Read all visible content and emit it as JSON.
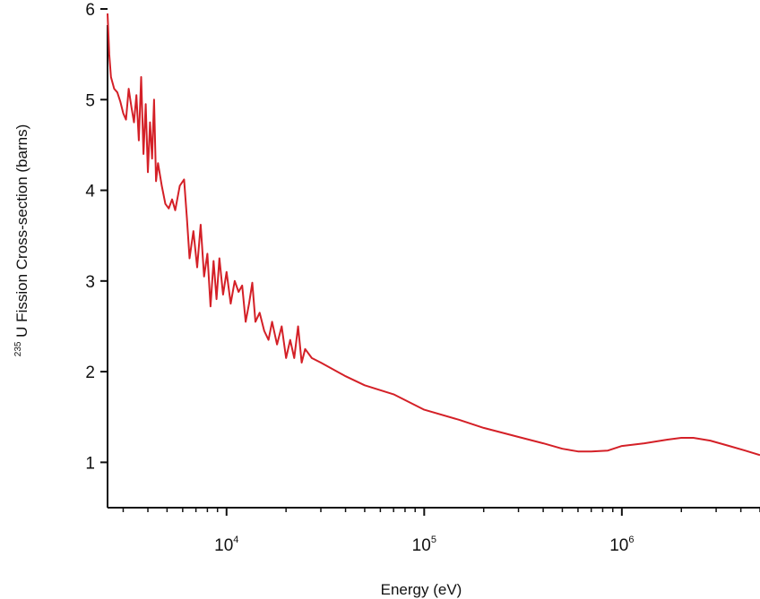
{
  "chart_data": {
    "type": "line",
    "title": "",
    "xlabel": "Energy (eV)",
    "ylabel_prefix": "235",
    "ylabel": "U Fission Cross-section (barns)",
    "x_scale": "log",
    "xlim": [
      2500,
      5000000
    ],
    "ylim": [
      0.5,
      6
    ],
    "x_ticks": [
      {
        "value": 10000,
        "base": "10",
        "exp": "4"
      },
      {
        "value": 100000,
        "base": "10",
        "exp": "5"
      },
      {
        "value": 1000000,
        "base": "10",
        "exp": "6"
      }
    ],
    "y_ticks": [
      1,
      2,
      3,
      4,
      5,
      6
    ],
    "grid": false,
    "legend": "none",
    "series": [
      {
        "color": "#d42027",
        "points": [
          [
            2500,
            5.95
          ],
          [
            2550,
            5.5
          ],
          [
            2600,
            5.25
          ],
          [
            2700,
            5.12
          ],
          [
            2800,
            5.08
          ],
          [
            2900,
            4.98
          ],
          [
            3000,
            4.85
          ],
          [
            3100,
            4.78
          ],
          [
            3200,
            5.12
          ],
          [
            3300,
            4.92
          ],
          [
            3400,
            4.75
          ],
          [
            3500,
            5.05
          ],
          [
            3600,
            4.55
          ],
          [
            3700,
            5.25
          ],
          [
            3800,
            4.4
          ],
          [
            3900,
            4.95
          ],
          [
            4000,
            4.2
          ],
          [
            4100,
            4.75
          ],
          [
            4200,
            4.35
          ],
          [
            4300,
            5.0
          ],
          [
            4400,
            4.1
          ],
          [
            4500,
            4.3
          ],
          [
            4700,
            4.05
          ],
          [
            4900,
            3.85
          ],
          [
            5100,
            3.8
          ],
          [
            5300,
            3.9
          ],
          [
            5500,
            3.78
          ],
          [
            5800,
            4.05
          ],
          [
            6100,
            4.12
          ],
          [
            6300,
            3.7
          ],
          [
            6500,
            3.25
          ],
          [
            6800,
            3.55
          ],
          [
            7100,
            3.15
          ],
          [
            7400,
            3.62
          ],
          [
            7700,
            3.05
          ],
          [
            8000,
            3.3
          ],
          [
            8300,
            2.72
          ],
          [
            8600,
            3.22
          ],
          [
            8900,
            2.8
          ],
          [
            9200,
            3.25
          ],
          [
            9600,
            2.85
          ],
          [
            10000,
            3.1
          ],
          [
            10500,
            2.75
          ],
          [
            11000,
            3.0
          ],
          [
            11500,
            2.88
          ],
          [
            12000,
            2.95
          ],
          [
            12500,
            2.55
          ],
          [
            13000,
            2.75
          ],
          [
            13500,
            2.98
          ],
          [
            14000,
            2.55
          ],
          [
            14700,
            2.65
          ],
          [
            15500,
            2.45
          ],
          [
            16300,
            2.35
          ],
          [
            17000,
            2.55
          ],
          [
            18000,
            2.3
          ],
          [
            19000,
            2.5
          ],
          [
            20000,
            2.15
          ],
          [
            21000,
            2.35
          ],
          [
            22000,
            2.15
          ],
          [
            23000,
            2.5
          ],
          [
            24000,
            2.1
          ],
          [
            25000,
            2.25
          ],
          [
            27000,
            2.15
          ],
          [
            30000,
            2.1
          ],
          [
            40000,
            1.95
          ],
          [
            50000,
            1.85
          ],
          [
            70000,
            1.75
          ],
          [
            100000,
            1.58
          ],
          [
            150000,
            1.47
          ],
          [
            200000,
            1.38
          ],
          [
            300000,
            1.28
          ],
          [
            400000,
            1.21
          ],
          [
            500000,
            1.15
          ],
          [
            600000,
            1.12
          ],
          [
            700000,
            1.12
          ],
          [
            850000,
            1.13
          ],
          [
            1000000,
            1.18
          ],
          [
            1300000,
            1.21
          ],
          [
            1700000,
            1.25
          ],
          [
            2000000,
            1.27
          ],
          [
            2300000,
            1.27
          ],
          [
            2800000,
            1.24
          ],
          [
            3500000,
            1.18
          ],
          [
            4200000,
            1.13
          ],
          [
            5000000,
            1.08
          ]
        ]
      }
    ]
  }
}
